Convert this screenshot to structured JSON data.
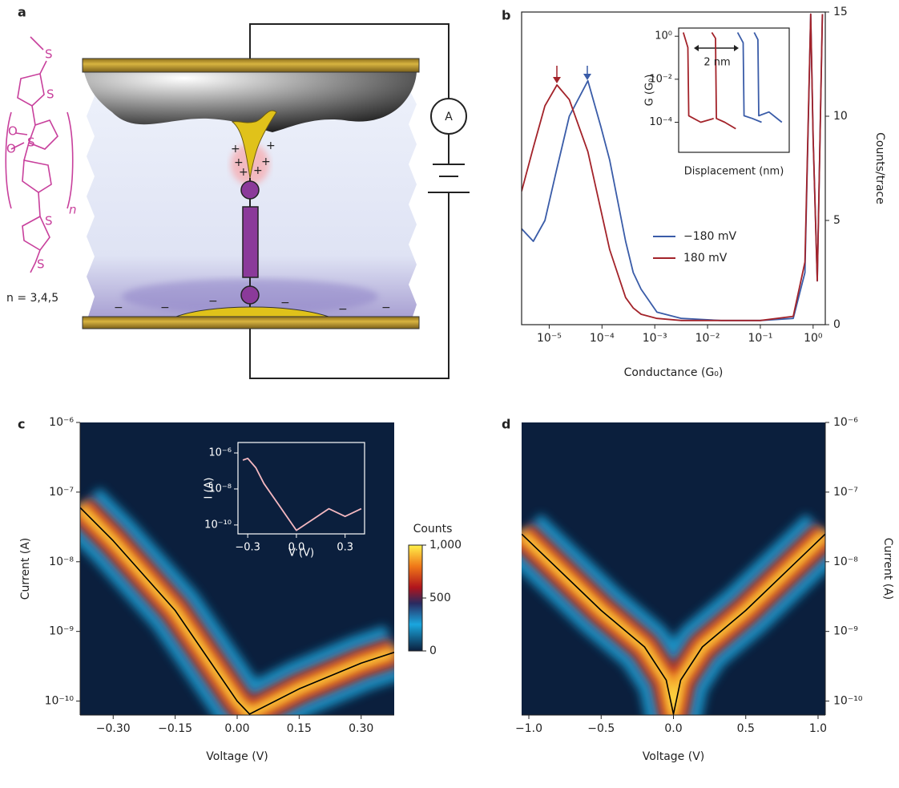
{
  "panels": [
    {
      "label": "a",
      "diagram": {
        "ammeter": "A",
        "plus": "+",
        "minus": "−",
        "sulfur": "S",
        "oxygen": "O",
        "repeat": "n",
        "caption": "n = 3,4,5"
      }
    },
    {
      "label": "b",
      "chart_data": {
        "type": "line",
        "xlabel": "Conductance (G₀)",
        "ylabel": "Counts/trace",
        "xscale": "log",
        "yaxis": "right",
        "frame": true,
        "legend": "center-right",
        "xlim": [
          3e-06,
          1.7
        ],
        "xticks": [
          {
            "value": 1e-05,
            "label": "10⁻⁵"
          },
          {
            "value": 0.0001,
            "label": "10⁻⁴"
          },
          {
            "value": 0.001,
            "label": "10⁻³"
          },
          {
            "value": 0.01,
            "label": "10⁻²"
          },
          {
            "value": 0.1,
            "label": "10⁻¹"
          },
          {
            "value": 1,
            "label": "10⁰"
          }
        ],
        "ylim": [
          0,
          15
        ],
        "yticks": [
          0,
          5,
          10,
          15
        ],
        "x": [
          3e-06,
          5e-06,
          8.3e-06,
          1.4e-05,
          2.4e-05,
          5.4e-05,
          9.5e-05,
          0.00014,
          0.00028,
          0.00039,
          0.00055,
          0.0011,
          0.0032,
          0.018,
          0.1,
          0.42,
          0.7,
          0.9,
          1.0,
          1.2,
          1.5
        ],
        "series": [
          {
            "name": "−180 mV",
            "color": "#3a5ca8",
            "values": [
              4.6,
              4.0,
              5.0,
              7.5,
              10,
              11.7,
              9.5,
              7.9,
              4.0,
              2.5,
              1.7,
              0.6,
              0.3,
              0.2,
              0.2,
              0.3,
              2.5,
              14.9,
              9,
              2.1,
              14.9
            ]
          },
          {
            "name": "180 mV",
            "color": "#a3232a",
            "values": [
              6.4,
              8.5,
              10.5,
              11.5,
              10.8,
              8.3,
              5.5,
              3.6,
              1.3,
              0.8,
              0.5,
              0.3,
              0.2,
              0.2,
              0.2,
              0.4,
              3,
              14.9,
              9,
              2.1,
              14.9
            ]
          }
        ],
        "inset": {
          "type": "line",
          "xlabel": "Displacement (nm)",
          "ylabel": "G (G₀)",
          "annotation": "2 nm",
          "yscale": "log",
          "frame": true,
          "xlim": [
            0,
            6
          ],
          "ylim": [
            4e-06,
            2.4
          ],
          "yticks": [
            {
              "value": 1,
              "label": "10⁰"
            },
            {
              "value": 0.01,
              "label": "10⁻²"
            },
            {
              "value": 0.0001,
              "label": "10⁻⁴"
            }
          ],
          "series": [
            {
              "color": "#a3232a",
              "x": [
                0.25,
                0.5,
                0.55,
                1.2,
                1.9
              ],
              "values": [
                1.5,
                0.3,
                0.0002,
                0.0001,
                0.00015
              ]
            },
            {
              "color": "#a3232a",
              "x": [
                1.8,
                2.0,
                2.05,
                2.5,
                3.1
              ],
              "values": [
                1.5,
                0.8,
                0.00015,
                0.0001,
                5e-05
              ]
            },
            {
              "color": "#3a5ca8",
              "x": [
                3.2,
                3.5,
                3.55,
                4.0,
                4.5
              ],
              "values": [
                1.5,
                0.5,
                0.0002,
                0.00015,
                0.0001
              ]
            },
            {
              "color": "#3a5ca8",
              "x": [
                4.1,
                4.3,
                4.35,
                4.9,
                5.6
              ],
              "values": [
                1.5,
                0.7,
                0.0002,
                0.0003,
                0.0001
              ]
            }
          ]
        }
      }
    },
    {
      "label": "c",
      "chart_data": {
        "type": "line",
        "xlabel": "Voltage (V)",
        "ylabel": "Current (A)",
        "yscale": "log",
        "yaxis": "left",
        "background": "#0b1f3d",
        "density_bands": true,
        "xlim": [
          -0.38,
          0.38
        ],
        "xticks": [
          {
            "value": -0.3,
            "label": "−0.30"
          },
          {
            "value": -0.15,
            "label": "−0.15"
          },
          {
            "value": 0,
            "label": "0.00"
          },
          {
            "value": 0.15,
            "label": "0.15"
          },
          {
            "value": 0.3,
            "label": "0.30"
          }
        ],
        "ylim": [
          6.3e-11,
          1e-06
        ],
        "yticks": [
          {
            "value": 1e-06,
            "label": "10⁻⁶"
          },
          {
            "value": 1e-07,
            "label": "10⁻⁷"
          },
          {
            "value": 1e-08,
            "label": "10⁻⁸"
          },
          {
            "value": 1e-09,
            "label": "10⁻⁹"
          },
          {
            "value": 1e-10,
            "label": "10⁻¹⁰"
          }
        ],
        "series": [
          {
            "color": "#000000",
            "x": [
              -0.38,
              -0.3,
              -0.15,
              0,
              0.03,
              0.15,
              0.3,
              0.38
            ],
            "values": [
              6e-08,
              2e-08,
              2e-09,
              1e-10,
              6.5e-11,
              1.5e-10,
              3.5e-10,
              5e-10
            ]
          }
        ],
        "colorbar": {
          "title": "Counts",
          "lim": [
            0,
            1000
          ],
          "ticks": [
            {
              "value": 1000,
              "label": "1,000"
            },
            500,
            0
          ]
        },
        "inset": {
          "type": "line",
          "xlabel": "V (V)",
          "ylabel": "I (A)",
          "yscale": "log",
          "frame": true,
          "foreground": "#ffffff",
          "xlim": [
            -0.36,
            0.42
          ],
          "xticks": [
            {
              "value": -0.3,
              "label": "−0.3"
            },
            {
              "value": 0,
              "label": "0.0"
            },
            {
              "value": 0.3,
              "label": "0.3"
            }
          ],
          "ylim": [
            3.2e-11,
            3.8e-06
          ],
          "yticks": [
            {
              "value": 1e-06,
              "label": "10⁻⁶"
            },
            {
              "value": 1e-08,
              "label": "10⁻⁸"
            },
            {
              "value": 1e-10,
              "label": "10⁻¹⁰"
            }
          ],
          "series": [
            {
              "color": "#f4b8c0",
              "x": [
                -0.33,
                -0.3,
                -0.25,
                -0.2,
                -0.1,
                0,
                0.1,
                0.2,
                0.3,
                0.4
              ],
              "values": [
                4e-07,
                5e-07,
                1.5e-07,
                2e-08,
                1e-09,
                5e-11,
                2e-10,
                8e-10,
                3e-10,
                8e-10
              ]
            }
          ]
        }
      }
    },
    {
      "label": "d",
      "chart_data": {
        "type": "line",
        "xlabel": "Voltage (V)",
        "ylabel": "Current (A)",
        "yscale": "log",
        "yaxis": "right",
        "background": "#0b1f3d",
        "density_bands": true,
        "xlim": [
          -1.05,
          1.05
        ],
        "xticks": [
          {
            "value": -1,
            "label": "−1.0"
          },
          {
            "value": -0.5,
            "label": "−0.5"
          },
          {
            "value": 0,
            "label": "0.0"
          },
          0.5,
          {
            "value": 1,
            "label": "1.0"
          }
        ],
        "ylim": [
          6.3e-11,
          1e-06
        ],
        "yticks": [
          {
            "value": 1e-06,
            "label": "10⁻⁶"
          },
          {
            "value": 1e-07,
            "label": "10⁻⁷"
          },
          {
            "value": 1e-08,
            "label": "10⁻⁸"
          },
          {
            "value": 1e-09,
            "label": "10⁻⁹"
          },
          {
            "value": 1e-10,
            "label": "10⁻¹⁰"
          }
        ],
        "series": [
          {
            "color": "#000000",
            "x": [
              -1.05,
              -0.5,
              -0.2,
              -0.05,
              0,
              0.05,
              0.2,
              0.5,
              1.05
            ],
            "values": [
              2.5e-08,
              2e-09,
              6e-10,
              2e-10,
              6.5e-11,
              2e-10,
              6e-10,
              2e-09,
              2.5e-08
            ]
          }
        ]
      }
    }
  ]
}
